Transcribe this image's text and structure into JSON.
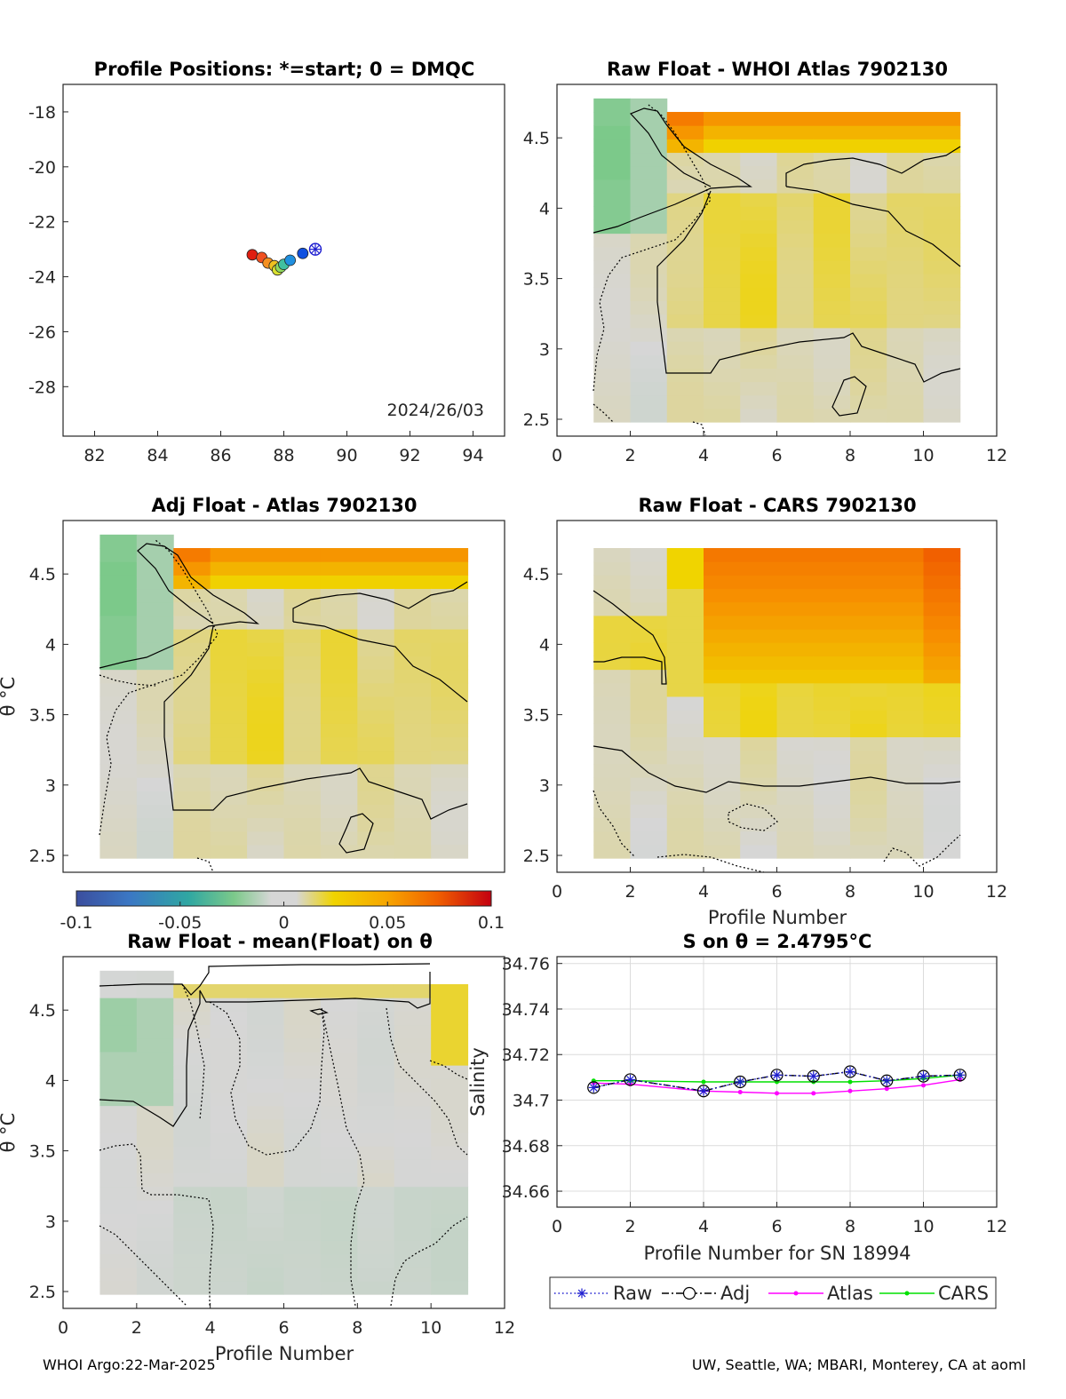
{
  "footer": {
    "left": "WHOI Argo:22-Mar-2025",
    "right": "UW, Seattle, WA; MBARI, Monterey, CA at aoml"
  },
  "colors": {
    "raw": "#1f1fd0",
    "adj": "#000000",
    "atlas": "#ff00ff",
    "cars": "#00e000",
    "colormap": [
      "#3b4e9e",
      "#3b78c4",
      "#2fa7a2",
      "#7cc98a",
      "#d6d6d6",
      "#f0d400",
      "#f7a500",
      "#f06000",
      "#c40010"
    ]
  },
  "colorbar": {
    "ticks": [
      "-0.1",
      "-0.05",
      "0",
      "0.05",
      "0.1"
    ]
  },
  "chart_data": [
    {
      "id": "positions",
      "type": "scatter",
      "title": "Profile Positions: *=start; 0 = DMQC",
      "xlim": [
        81,
        95
      ],
      "ylim": [
        -29.8,
        -17
      ],
      "xticks": [
        "82",
        "84",
        "86",
        "88",
        "90",
        "92",
        "94"
      ],
      "yticks": [
        "-18",
        "-20",
        "-22",
        "-24",
        "-26",
        "-28"
      ],
      "annotation": "2024/26/03",
      "start": {
        "lon": 89.0,
        "lat": -23.0
      },
      "points": [
        {
          "lon": 87.0,
          "lat": -23.2,
          "color": "#e01e10"
        },
        {
          "lon": 87.3,
          "lat": -23.3,
          "color": "#f05020"
        },
        {
          "lon": 87.5,
          "lat": -23.5,
          "color": "#f59020"
        },
        {
          "lon": 87.7,
          "lat": -23.6,
          "color": "#f0c020"
        },
        {
          "lon": 87.8,
          "lat": -23.75,
          "color": "#d8e030"
        },
        {
          "lon": 87.9,
          "lat": -23.65,
          "color": "#90d860"
        },
        {
          "lon": 88.0,
          "lat": -23.55,
          "color": "#40c0a0"
        },
        {
          "lon": 88.2,
          "lat": -23.4,
          "color": "#2090e0"
        },
        {
          "lon": 88.6,
          "lat": -23.15,
          "color": "#1050e0"
        }
      ]
    },
    {
      "id": "raw-atlas",
      "type": "heatmap",
      "title": "Raw Float - WHOI Atlas  7902130",
      "xlim": [
        0,
        12
      ],
      "ylim": [
        2.38,
        4.88
      ],
      "xticks": [
        "0",
        "2",
        "4",
        "6",
        "8",
        "10",
        "12"
      ],
      "yticks": [
        "2.5",
        "3",
        "3.5",
        "4",
        "4.5"
      ],
      "ylabel": ""
    },
    {
      "id": "adj-atlas",
      "type": "heatmap",
      "title": "Adj Float - Atlas  7902130",
      "xlim": [
        0,
        12
      ],
      "ylim": [
        2.38,
        4.88
      ],
      "xticks": [],
      "yticks": [
        "2.5",
        "3",
        "3.5",
        "4",
        "4.5"
      ],
      "ylabel": "θ °C"
    },
    {
      "id": "raw-cars",
      "type": "heatmap",
      "title": "Raw Float - CARS  7902130",
      "xlim": [
        0,
        12
      ],
      "ylim": [
        2.38,
        4.88
      ],
      "xticks": [
        "0",
        "2",
        "4",
        "6",
        "8",
        "10",
        "12"
      ],
      "yticks": [
        "2.5",
        "3",
        "3.5",
        "4",
        "4.5"
      ],
      "xlabel": "Profile Number",
      "ylabel": ""
    },
    {
      "id": "raw-mean",
      "type": "heatmap",
      "title": "Raw Float - mean(Float) on θ",
      "xlim": [
        0,
        12
      ],
      "ylim": [
        2.38,
        4.88
      ],
      "xticks": [
        "0",
        "2",
        "4",
        "6",
        "8",
        "10",
        "12"
      ],
      "yticks": [
        "2.5",
        "3",
        "3.5",
        "4",
        "4.5"
      ],
      "xlabel": "Profile Number",
      "ylabel": "θ °C"
    },
    {
      "id": "salinity",
      "type": "line",
      "title": "S on θ = 2.4795°C",
      "xlim": [
        0,
        12
      ],
      "ylim": [
        34.653,
        34.763
      ],
      "xticks": [
        "0",
        "2",
        "4",
        "6",
        "8",
        "10",
        "12"
      ],
      "yticks": [
        "34.66",
        "34.68",
        "34.7",
        "34.72",
        "34.74",
        "34.76"
      ],
      "xlabel": "Profile Number for SN 18994",
      "ylabel": "Salinity",
      "grid": true,
      "legend": "bottom",
      "x": [
        1,
        2,
        4,
        5,
        6,
        7,
        8,
        9,
        10,
        11
      ],
      "series": [
        {
          "name": "Raw",
          "values": [
            34.7055,
            34.709,
            34.704,
            34.708,
            34.711,
            34.7105,
            34.7125,
            34.7085,
            34.7105,
            34.711
          ]
        },
        {
          "name": "Adj",
          "values": [
            34.7055,
            34.709,
            34.704,
            34.708,
            34.711,
            34.7105,
            34.7125,
            34.7085,
            34.7105,
            34.711
          ]
        },
        {
          "name": "Atlas",
          "values": [
            34.7075,
            34.707,
            34.704,
            34.7035,
            34.703,
            34.703,
            34.704,
            34.705,
            34.7065,
            34.709
          ]
        },
        {
          "name": "CARS",
          "values": [
            34.7085,
            34.7085,
            34.708,
            34.708,
            34.708,
            34.708,
            34.708,
            34.7085,
            34.7095,
            34.711
          ]
        }
      ]
    }
  ]
}
